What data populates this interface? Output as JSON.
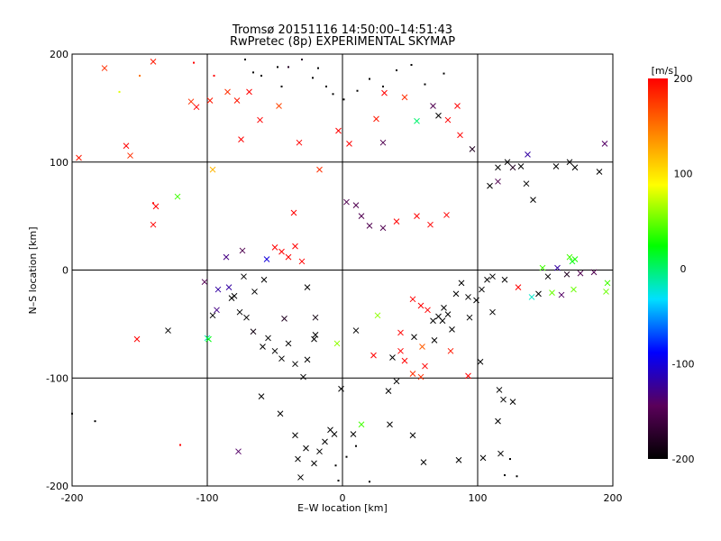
{
  "title_line1": "Tromsø 20151116 14:50:00–14:51:43",
  "title_line2": "RwPretec (8p) EXPERIMENTAL SKYMAP",
  "chart_data": {
    "type": "scatter",
    "title": "Tromsø 20151116 14:50:00–14:51:43",
    "subtitle": "RwPretec (8p) EXPERIMENTAL SKYMAP",
    "xlabel": "E–W location [km]",
    "ylabel": "N–S location [km]",
    "xlim": [
      -200,
      200
    ],
    "ylim": [
      -200,
      200
    ],
    "xticks": [
      -200,
      -100,
      0,
      100,
      200
    ],
    "yticks": [
      -200,
      -100,
      0,
      100,
      200
    ],
    "grid": true,
    "colorbar": {
      "label": "[m/s]",
      "range": [
        -200,
        200
      ],
      "ticks": [
        200,
        100,
        0,
        -100,
        -200
      ],
      "colormap": "black-purple-blue-cyan-green-yellow-orange-red"
    },
    "markers": {
      "small": "dot",
      "large": "cross"
    },
    "points": [
      [
        -195,
        104,
        190,
        1
      ],
      [
        -176,
        187,
        180,
        1
      ],
      [
        -160,
        115,
        200,
        1
      ],
      [
        -157,
        106,
        180,
        1
      ],
      [
        -140,
        193,
        190,
        1
      ],
      [
        -140,
        42,
        200,
        1
      ],
      [
        -138,
        59,
        200,
        1
      ],
      [
        -122,
        68,
        40,
        1
      ],
      [
        -112,
        156,
        180,
        1
      ],
      [
        -108,
        151,
        200,
        1
      ],
      [
        -98,
        157,
        190,
        1
      ],
      [
        -96,
        93,
        120,
        1
      ],
      [
        -85,
        165,
        180,
        1
      ],
      [
        -78,
        157,
        190,
        1
      ],
      [
        -69,
        165,
        200,
        1
      ],
      [
        -75,
        121,
        200,
        1
      ],
      [
        -61,
        139,
        200,
        1
      ],
      [
        -47,
        152,
        170,
        1
      ],
      [
        -32,
        118,
        200,
        1
      ],
      [
        -36,
        53,
        200,
        1
      ],
      [
        -17,
        93,
        180,
        1
      ],
      [
        -3,
        129,
        200,
        1
      ],
      [
        5,
        117,
        200,
        1
      ],
      [
        25,
        140,
        190,
        1
      ],
      [
        31,
        164,
        200,
        1
      ],
      [
        46,
        160,
        180,
        1
      ],
      [
        30,
        118,
        -150,
        1
      ],
      [
        55,
        138,
        0,
        1
      ],
      [
        67,
        152,
        -150,
        1
      ],
      [
        71,
        143,
        -200,
        1
      ],
      [
        78,
        139,
        200,
        1
      ],
      [
        87,
        125,
        200,
        1
      ],
      [
        85,
        152,
        200,
        1
      ],
      [
        96,
        112,
        -180,
        1
      ],
      [
        109,
        78,
        -200,
        1
      ],
      [
        115,
        95,
        -200,
        1
      ],
      [
        115,
        82,
        -150,
        1
      ],
      [
        122,
        100,
        -200,
        1
      ],
      [
        126,
        95,
        -180,
        1
      ],
      [
        132,
        96,
        -200,
        1
      ],
      [
        137,
        107,
        -120,
        1
      ],
      [
        136,
        80,
        -200,
        1
      ],
      [
        141,
        65,
        -200,
        1
      ],
      [
        158,
        96,
        -200,
        1
      ],
      [
        168,
        100,
        -200,
        1
      ],
      [
        172,
        95,
        -200,
        1
      ],
      [
        194,
        117,
        -140,
        1
      ],
      [
        190,
        91,
        -200,
        1
      ],
      [
        -152,
        -64,
        200,
        1
      ],
      [
        -129,
        -56,
        -200,
        1
      ],
      [
        -100,
        -63,
        -20,
        1
      ],
      [
        -102,
        -11,
        -150,
        1
      ],
      [
        -96,
        -42,
        -200,
        1
      ],
      [
        -93,
        -37,
        -130,
        1
      ],
      [
        -92,
        -18,
        -120,
        1
      ],
      [
        -82,
        -26,
        -200,
        1
      ],
      [
        -76,
        -39,
        -200,
        1
      ],
      [
        -71,
        -44,
        -200,
        1
      ],
      [
        -66,
        -57,
        -190,
        1
      ],
      [
        -59,
        -71,
        -200,
        1
      ],
      [
        -55,
        -63,
        -200,
        1
      ],
      [
        -50,
        -75,
        -200,
        1
      ],
      [
        -45,
        -82,
        -200,
        1
      ],
      [
        -40,
        -68,
        -200,
        1
      ],
      [
        -35,
        -87,
        -200,
        1
      ],
      [
        -29,
        -99,
        -200,
        1
      ],
      [
        -26,
        -83,
        -200,
        1
      ],
      [
        -21,
        -64,
        -200,
        1
      ],
      [
        -20,
        -44,
        -190,
        1
      ],
      [
        -43,
        -45,
        -180,
        1
      ],
      [
        -4,
        -68,
        60,
        1
      ],
      [
        -60,
        -117,
        -200,
        1
      ],
      [
        -46,
        -133,
        -200,
        1
      ],
      [
        -35,
        -153,
        -200,
        1
      ],
      [
        -27,
        -165,
        -200,
        1
      ],
      [
        -21,
        -179,
        -200,
        1
      ],
      [
        -17,
        -168,
        -200,
        1
      ],
      [
        -13,
        -159,
        -200,
        1
      ],
      [
        -9,
        -148,
        -200,
        1
      ],
      [
        -6,
        -152,
        -200,
        1
      ],
      [
        -33,
        -175,
        -200,
        1
      ],
      [
        -31,
        -192,
        -200,
        1
      ],
      [
        -77,
        -168,
        -140,
        1
      ],
      [
        -1,
        -110,
        -200,
        1
      ],
      [
        8,
        -152,
        -200,
        1
      ],
      [
        14,
        -143,
        40,
        1
      ],
      [
        23,
        -79,
        200,
        1
      ],
      [
        34,
        -112,
        -200,
        1
      ],
      [
        40,
        -103,
        -200,
        1
      ],
      [
        46,
        -84,
        200,
        1
      ],
      [
        52,
        -96,
        180,
        1
      ],
      [
        58,
        -99,
        180,
        1
      ],
      [
        59,
        -71,
        160,
        1
      ],
      [
        68,
        -65,
        -200,
        1
      ],
      [
        80,
        -75,
        190,
        1
      ],
      [
        93,
        -98,
        200,
        1
      ],
      [
        102,
        -85,
        -200,
        1
      ],
      [
        116,
        -111,
        -200,
        1
      ],
      [
        119,
        -120,
        -200,
        1
      ],
      [
        126,
        -122,
        -200,
        1
      ],
      [
        115,
        -140,
        -200,
        1
      ],
      [
        117,
        -170,
        -200,
        1
      ],
      [
        104,
        -174,
        -200,
        1
      ],
      [
        86,
        -176,
        -200,
        1
      ],
      [
        60,
        -178,
        -200,
        1
      ],
      [
        52,
        -153,
        -200,
        1
      ],
      [
        35,
        -143,
        -200,
        1
      ],
      [
        130,
        -16,
        200,
        1
      ],
      [
        140,
        -25,
        -20,
        1
      ],
      [
        152,
        -6,
        -200,
        1
      ],
      [
        159,
        2,
        -120,
        1
      ],
      [
        166,
        -4,
        -180,
        1
      ],
      [
        168,
        12,
        40,
        1
      ],
      [
        170,
        8,
        20,
        1
      ],
      [
        172,
        10,
        30,
        1
      ],
      [
        171,
        -18,
        50,
        1
      ],
      [
        176,
        -3,
        -150,
        1
      ],
      [
        186,
        -2,
        -150,
        1
      ],
      [
        196,
        -12,
        40,
        1
      ],
      [
        195,
        -20,
        50,
        1
      ],
      [
        148,
        2,
        40,
        1
      ],
      [
        155,
        -21,
        50,
        1
      ],
      [
        162,
        -23,
        -140,
        1
      ],
      [
        145,
        -22,
        -200,
        1
      ],
      [
        -99,
        -64,
        20,
        1
      ],
      [
        -20,
        -60,
        -200,
        1
      ],
      [
        -26,
        -16,
        -200,
        1
      ],
      [
        10,
        -56,
        -200,
        1
      ],
      [
        37,
        -81,
        -200,
        1
      ],
      [
        53,
        -62,
        -200,
        1
      ],
      [
        67,
        -47,
        -200,
        1
      ],
      [
        71,
        -43,
        -200,
        1
      ],
      [
        75,
        -35,
        -200,
        1
      ],
      [
        78,
        -41,
        -200,
        1
      ],
      [
        84,
        -22,
        -200,
        1
      ],
      [
        88,
        -12,
        -200,
        1
      ],
      [
        93,
        -25,
        -200,
        1
      ],
      [
        99,
        -28,
        -200,
        1
      ],
      [
        103,
        -18,
        -200,
        1
      ],
      [
        107,
        -9,
        -200,
        1
      ],
      [
        111,
        -6,
        -200,
        1
      ],
      [
        120,
        -9,
        -200,
        1
      ],
      [
        -74,
        18,
        -150,
        1
      ],
      [
        -56,
        10,
        -100,
        1
      ],
      [
        -50,
        21,
        200,
        1
      ],
      [
        -45,
        17,
        200,
        1
      ],
      [
        -40,
        12,
        200,
        1
      ],
      [
        -35,
        22,
        200,
        1
      ],
      [
        -30,
        8,
        200,
        1
      ],
      [
        3,
        63,
        -150,
        1
      ],
      [
        10,
        60,
        -150,
        1
      ],
      [
        14,
        50,
        -150,
        1
      ],
      [
        20,
        41,
        -150,
        1
      ],
      [
        30,
        39,
        -150,
        1
      ],
      [
        40,
        45,
        200,
        1
      ],
      [
        55,
        50,
        200,
        1
      ],
      [
        65,
        42,
        200,
        1
      ],
      [
        77,
        51,
        200,
        1
      ],
      [
        -86,
        12,
        -130,
        1
      ],
      [
        -84,
        -16,
        -120,
        1
      ],
      [
        -80,
        -24,
        -200,
        1
      ],
      [
        -73,
        -6,
        -200,
        1
      ],
      [
        -65,
        -20,
        -200,
        1
      ],
      [
        -58,
        -9,
        -200,
        1
      ],
      [
        52,
        -27,
        200,
        1
      ],
      [
        58,
        -33,
        200,
        1
      ],
      [
        63,
        -37,
        200,
        1
      ],
      [
        74,
        -47,
        -200,
        1
      ],
      [
        81,
        -55,
        -200,
        1
      ],
      [
        94,
        -44,
        -200,
        1
      ],
      [
        111,
        -39,
        -200,
        1
      ],
      [
        26,
        -42,
        60,
        1
      ],
      [
        43,
        -58,
        200,
        1
      ],
      [
        43,
        -75,
        200,
        1
      ],
      [
        61,
        -89,
        200,
        1
      ],
      [
        -200,
        -133,
        -200,
        0
      ],
      [
        -183,
        -140,
        -200,
        0
      ],
      [
        -140,
        62,
        200,
        0
      ],
      [
        -165,
        165,
        80,
        0
      ],
      [
        -150,
        180,
        150,
        0
      ],
      [
        -120,
        -162,
        200,
        0
      ],
      [
        -110,
        192,
        200,
        0
      ],
      [
        -95,
        180,
        200,
        0
      ],
      [
        -72,
        195,
        -200,
        0
      ],
      [
        -66,
        183,
        -200,
        0
      ],
      [
        -60,
        180,
        -200,
        0
      ],
      [
        -48,
        188,
        -200,
        0
      ],
      [
        -45,
        170,
        -200,
        0
      ],
      [
        -40,
        188,
        -180,
        0
      ],
      [
        -30,
        195,
        -180,
        0
      ],
      [
        -22,
        178,
        -200,
        0
      ],
      [
        -18,
        187,
        -200,
        0
      ],
      [
        -12,
        170,
        -200,
        0
      ],
      [
        -7,
        163,
        -200,
        0
      ],
      [
        1,
        158,
        -200,
        0
      ],
      [
        11,
        166,
        -200,
        0
      ],
      [
        20,
        177,
        -200,
        0
      ],
      [
        30,
        170,
        -200,
        0
      ],
      [
        40,
        185,
        -200,
        0
      ],
      [
        51,
        190,
        -200,
        0
      ],
      [
        61,
        172,
        -200,
        0
      ],
      [
        75,
        182,
        -200,
        0
      ],
      [
        -5,
        -181,
        -200,
        0
      ],
      [
        -3,
        -195,
        -200,
        0
      ],
      [
        3,
        -173,
        -200,
        0
      ],
      [
        10,
        -163,
        -200,
        0
      ],
      [
        120,
        -190,
        -200,
        0
      ],
      [
        129,
        -191,
        -200,
        0
      ],
      [
        124,
        -175,
        -200,
        0
      ],
      [
        20,
        -196,
        -200,
        0
      ]
    ]
  }
}
